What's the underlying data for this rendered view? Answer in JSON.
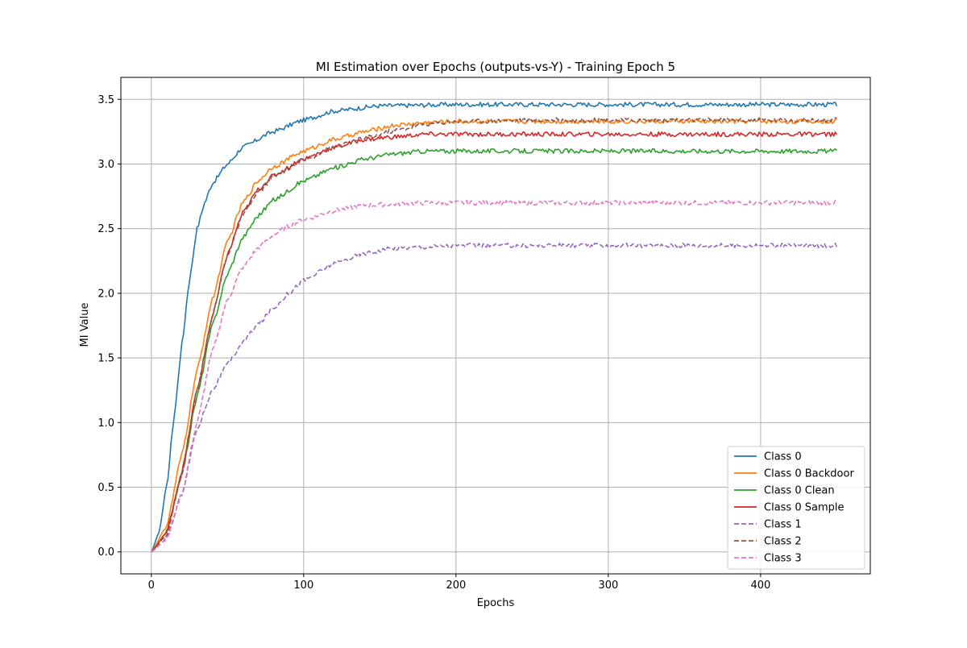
{
  "chart_data": {
    "type": "line",
    "title": "MI Estimation over Epochs (outputs-vs-Y) - Training Epoch 5",
    "xlabel": "Epochs",
    "ylabel": "MI Value",
    "xlim": [
      -20,
      472
    ],
    "ylim": [
      -0.17,
      3.67
    ],
    "xticks": [
      0,
      100,
      200,
      300,
      400
    ],
    "yticks": [
      0.0,
      0.5,
      1.0,
      1.5,
      2.0,
      2.5,
      3.0,
      3.5
    ],
    "xtick_labels": [
      "0",
      "100",
      "200",
      "300",
      "400"
    ],
    "ytick_labels": [
      "0.0",
      "0.5",
      "1.0",
      "1.5",
      "2.0",
      "2.5",
      "3.0",
      "3.5"
    ],
    "grid": true,
    "legend_position": "lower-right",
    "series": [
      {
        "name": "Class 0",
        "color": "#1f77b4",
        "dash": "solid",
        "x": [
          0,
          5,
          10,
          15,
          20,
          25,
          30,
          35,
          40,
          50,
          60,
          80,
          100,
          120,
          150,
          200,
          250,
          300,
          350,
          400,
          450
        ],
        "y": [
          0.0,
          0.15,
          0.5,
          1.05,
          1.6,
          2.1,
          2.5,
          2.7,
          2.85,
          3.0,
          3.13,
          3.25,
          3.34,
          3.41,
          3.45,
          3.46,
          3.46,
          3.46,
          3.46,
          3.46,
          3.46
        ]
      },
      {
        "name": "Class 0 Backdoor",
        "color": "#ff7f0e",
        "dash": "solid",
        "x": [
          0,
          10,
          20,
          30,
          40,
          50,
          60,
          70,
          80,
          100,
          120,
          140,
          160,
          180,
          200,
          250,
          300,
          350,
          400,
          450
        ],
        "y": [
          0.0,
          0.2,
          0.75,
          1.4,
          1.95,
          2.4,
          2.7,
          2.87,
          2.98,
          3.1,
          3.19,
          3.25,
          3.3,
          3.32,
          3.33,
          3.33,
          3.33,
          3.33,
          3.33,
          3.33
        ]
      },
      {
        "name": "Class 0 Clean",
        "color": "#2ca02c",
        "dash": "solid",
        "x": [
          0,
          10,
          20,
          30,
          40,
          50,
          60,
          70,
          80,
          100,
          120,
          140,
          160,
          180,
          200,
          250,
          300,
          350,
          400,
          450
        ],
        "y": [
          0.0,
          0.15,
          0.6,
          1.2,
          1.75,
          2.15,
          2.43,
          2.6,
          2.72,
          2.87,
          2.97,
          3.04,
          3.08,
          3.1,
          3.1,
          3.1,
          3.1,
          3.1,
          3.1,
          3.1
        ]
      },
      {
        "name": "Class 0 Sample",
        "color": "#d62728",
        "dash": "solid",
        "x": [
          0,
          10,
          20,
          30,
          40,
          50,
          60,
          70,
          80,
          100,
          120,
          140,
          160,
          180,
          200,
          250,
          300,
          350,
          400,
          450
        ],
        "y": [
          0.0,
          0.15,
          0.62,
          1.25,
          1.82,
          2.3,
          2.62,
          2.8,
          2.91,
          3.04,
          3.13,
          3.19,
          3.21,
          3.23,
          3.23,
          3.23,
          3.23,
          3.23,
          3.23,
          3.23
        ]
      },
      {
        "name": "Class 1",
        "color": "#9467bd",
        "dash": "dashed",
        "x": [
          0,
          10,
          20,
          30,
          40,
          50,
          60,
          70,
          80,
          90,
          100,
          120,
          140,
          160,
          180,
          200,
          250,
          300,
          350,
          400,
          450
        ],
        "y": [
          0.0,
          0.1,
          0.45,
          0.95,
          1.25,
          1.45,
          1.62,
          1.76,
          1.88,
          2.0,
          2.1,
          2.23,
          2.31,
          2.35,
          2.36,
          2.37,
          2.37,
          2.37,
          2.37,
          2.37,
          2.37
        ]
      },
      {
        "name": "Class 2",
        "color": "#8c564b",
        "dash": "dashed",
        "x": [
          0,
          10,
          20,
          30,
          40,
          50,
          60,
          70,
          80,
          100,
          120,
          140,
          160,
          180,
          200,
          250,
          300,
          350,
          400,
          450
        ],
        "y": [
          0.0,
          0.13,
          0.6,
          1.25,
          1.82,
          2.3,
          2.6,
          2.78,
          2.9,
          3.03,
          3.13,
          3.2,
          3.26,
          3.31,
          3.33,
          3.34,
          3.34,
          3.34,
          3.34,
          3.34
        ]
      },
      {
        "name": "Class 3",
        "color": "#e377c2",
        "dash": "dashed",
        "x": [
          0,
          10,
          20,
          30,
          40,
          50,
          60,
          70,
          80,
          90,
          100,
          120,
          140,
          160,
          180,
          200,
          250,
          300,
          350,
          400,
          450
        ],
        "y": [
          0.0,
          0.1,
          0.45,
          1.0,
          1.55,
          1.95,
          2.2,
          2.35,
          2.45,
          2.52,
          2.57,
          2.64,
          2.68,
          2.69,
          2.7,
          2.7,
          2.7,
          2.7,
          2.7,
          2.7,
          2.7
        ]
      }
    ]
  }
}
